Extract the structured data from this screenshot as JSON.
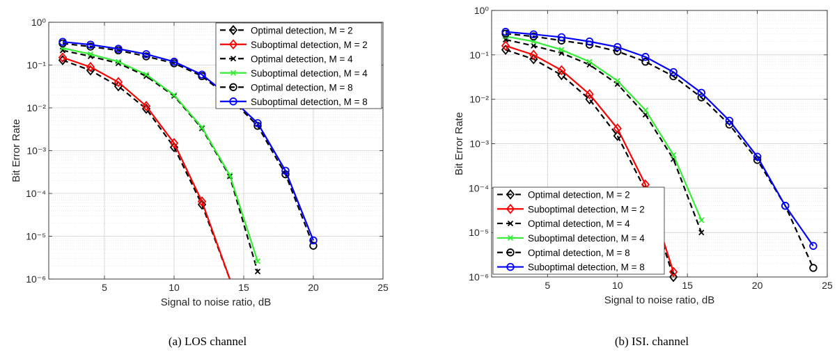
{
  "colors": {
    "optimal": "#000000",
    "subopt_m2": "#ff0000",
    "subopt_m4": "#33ee33",
    "subopt_m8": "#0000ff"
  },
  "chart_data": [
    {
      "type": "line",
      "caption": "(a)  LOS channel",
      "xlabel": "Signal to noise ratio, dB",
      "ylabel": "Bit Error Rate",
      "xlim": [
        1,
        25
      ],
      "ylim": [
        1e-06,
        1
      ],
      "yscale": "log",
      "xticks": [
        5,
        10,
        15,
        20,
        25
      ],
      "yticks": [
        1e-06,
        1e-05,
        0.0001,
        0.001,
        0.01,
        0.1,
        1
      ],
      "grid": true,
      "legend_position": "top-right",
      "series": [
        {
          "name": "Optimal detection, M = 2",
          "marker": "diamond",
          "style": "dashed",
          "color": "#000000",
          "x": [
            2,
            4,
            6,
            8,
            10,
            12,
            14
          ],
          "y": [
            0.13,
            0.075,
            0.032,
            0.0095,
            0.0012,
            5.5e-05,
            7e-07
          ]
        },
        {
          "name": "Suboptimal detection, M = 2",
          "marker": "diamond",
          "style": "solid",
          "color": "#ff0000",
          "x": [
            2,
            4,
            6,
            8,
            10,
            12,
            14
          ],
          "y": [
            0.15,
            0.09,
            0.04,
            0.011,
            0.0015,
            6.5e-05,
            8e-07
          ]
        },
        {
          "name": "Optimal detection, M = 4",
          "marker": "x",
          "style": "dashed",
          "color": "#000000",
          "x": [
            2,
            4,
            6,
            8,
            10,
            12,
            14,
            16
          ],
          "y": [
            0.22,
            0.16,
            0.11,
            0.055,
            0.019,
            0.0033,
            0.00025,
            1.5e-06
          ]
        },
        {
          "name": "Suboptimal detection, M = 4",
          "marker": "x",
          "style": "solid",
          "color": "#33ee33",
          "x": [
            2,
            4,
            6,
            8,
            10,
            12,
            14,
            16
          ],
          "y": [
            0.25,
            0.18,
            0.12,
            0.06,
            0.02,
            0.0035,
            0.00027,
            2.6e-06
          ]
        },
        {
          "name": "Optimal detection, M = 8",
          "marker": "circle",
          "style": "dashed",
          "color": "#000000",
          "x": [
            2,
            4,
            6,
            8,
            10,
            12,
            14,
            16,
            18,
            20
          ],
          "y": [
            0.32,
            0.27,
            0.22,
            0.16,
            0.11,
            0.055,
            0.017,
            0.0038,
            0.00028,
            6e-06
          ]
        },
        {
          "name": "Suboptimal detection, M = 8",
          "marker": "circle",
          "style": "solid",
          "color": "#0000ff",
          "x": [
            2,
            4,
            6,
            8,
            10,
            12,
            14,
            16,
            18,
            20
          ],
          "y": [
            0.35,
            0.3,
            0.24,
            0.18,
            0.12,
            0.06,
            0.018,
            0.0044,
            0.00034,
            8e-06
          ]
        }
      ]
    },
    {
      "type": "line",
      "caption": "(b)  ISI. channel",
      "xlabel": "Signal to noise ratio, dB",
      "ylabel": "Bit Error Rate",
      "xlim": [
        1,
        25
      ],
      "ylim": [
        1e-06,
        1
      ],
      "yscale": "log",
      "xticks": [
        5,
        10,
        15,
        20,
        25
      ],
      "yticks": [
        1e-06,
        1e-05,
        0.0001,
        0.001,
        0.01,
        0.1,
        1
      ],
      "grid": true,
      "legend_position": "bottom-left",
      "series": [
        {
          "name": "Optimal detection, M = 2",
          "marker": "diamond",
          "style": "dashed",
          "color": "#000000",
          "x": [
            2,
            4,
            6,
            8,
            10,
            12,
            14
          ],
          "y": [
            0.13,
            0.08,
            0.035,
            0.01,
            0.0015,
            9e-05,
            1e-06
          ]
        },
        {
          "name": "Suboptimal detection, M = 2",
          "marker": "diamond",
          "style": "solid",
          "color": "#ff0000",
          "x": [
            2,
            4,
            6,
            8,
            10,
            12,
            14
          ],
          "y": [
            0.16,
            0.1,
            0.045,
            0.013,
            0.0022,
            0.00012,
            1.3e-06
          ]
        },
        {
          "name": "Optimal detection, M = 4",
          "marker": "x",
          "style": "dashed",
          "color": "#000000",
          "x": [
            2,
            4,
            6,
            8,
            10,
            12,
            14,
            16
          ],
          "y": [
            0.22,
            0.16,
            0.11,
            0.06,
            0.022,
            0.0045,
            0.00045,
            1e-05
          ]
        },
        {
          "name": "Suboptimal detection, M = 4",
          "marker": "x",
          "style": "solid",
          "color": "#33ee33",
          "x": [
            2,
            4,
            6,
            8,
            10,
            12,
            14,
            16
          ],
          "y": [
            0.26,
            0.2,
            0.13,
            0.07,
            0.026,
            0.0057,
            0.00056,
            1.9e-05
          ]
        },
        {
          "name": "Optimal detection, M = 8",
          "marker": "circle",
          "style": "dashed",
          "color": "#000000",
          "x": [
            2,
            4,
            6,
            8,
            10,
            12,
            14,
            16,
            18,
            20,
            22,
            24
          ],
          "y": [
            0.3,
            0.26,
            0.21,
            0.17,
            0.12,
            0.07,
            0.033,
            0.011,
            0.0027,
            0.00043,
            4e-05,
            1.6e-06
          ]
        },
        {
          "name": "Suboptimal detection, M = 8",
          "marker": "circle",
          "style": "solid",
          "color": "#0000ff",
          "x": [
            2,
            4,
            6,
            8,
            10,
            12,
            14,
            16,
            18,
            20,
            22,
            24
          ],
          "y": [
            0.33,
            0.29,
            0.25,
            0.2,
            0.15,
            0.09,
            0.041,
            0.014,
            0.0033,
            0.00051,
            4e-05,
            5e-06
          ]
        }
      ]
    }
  ]
}
